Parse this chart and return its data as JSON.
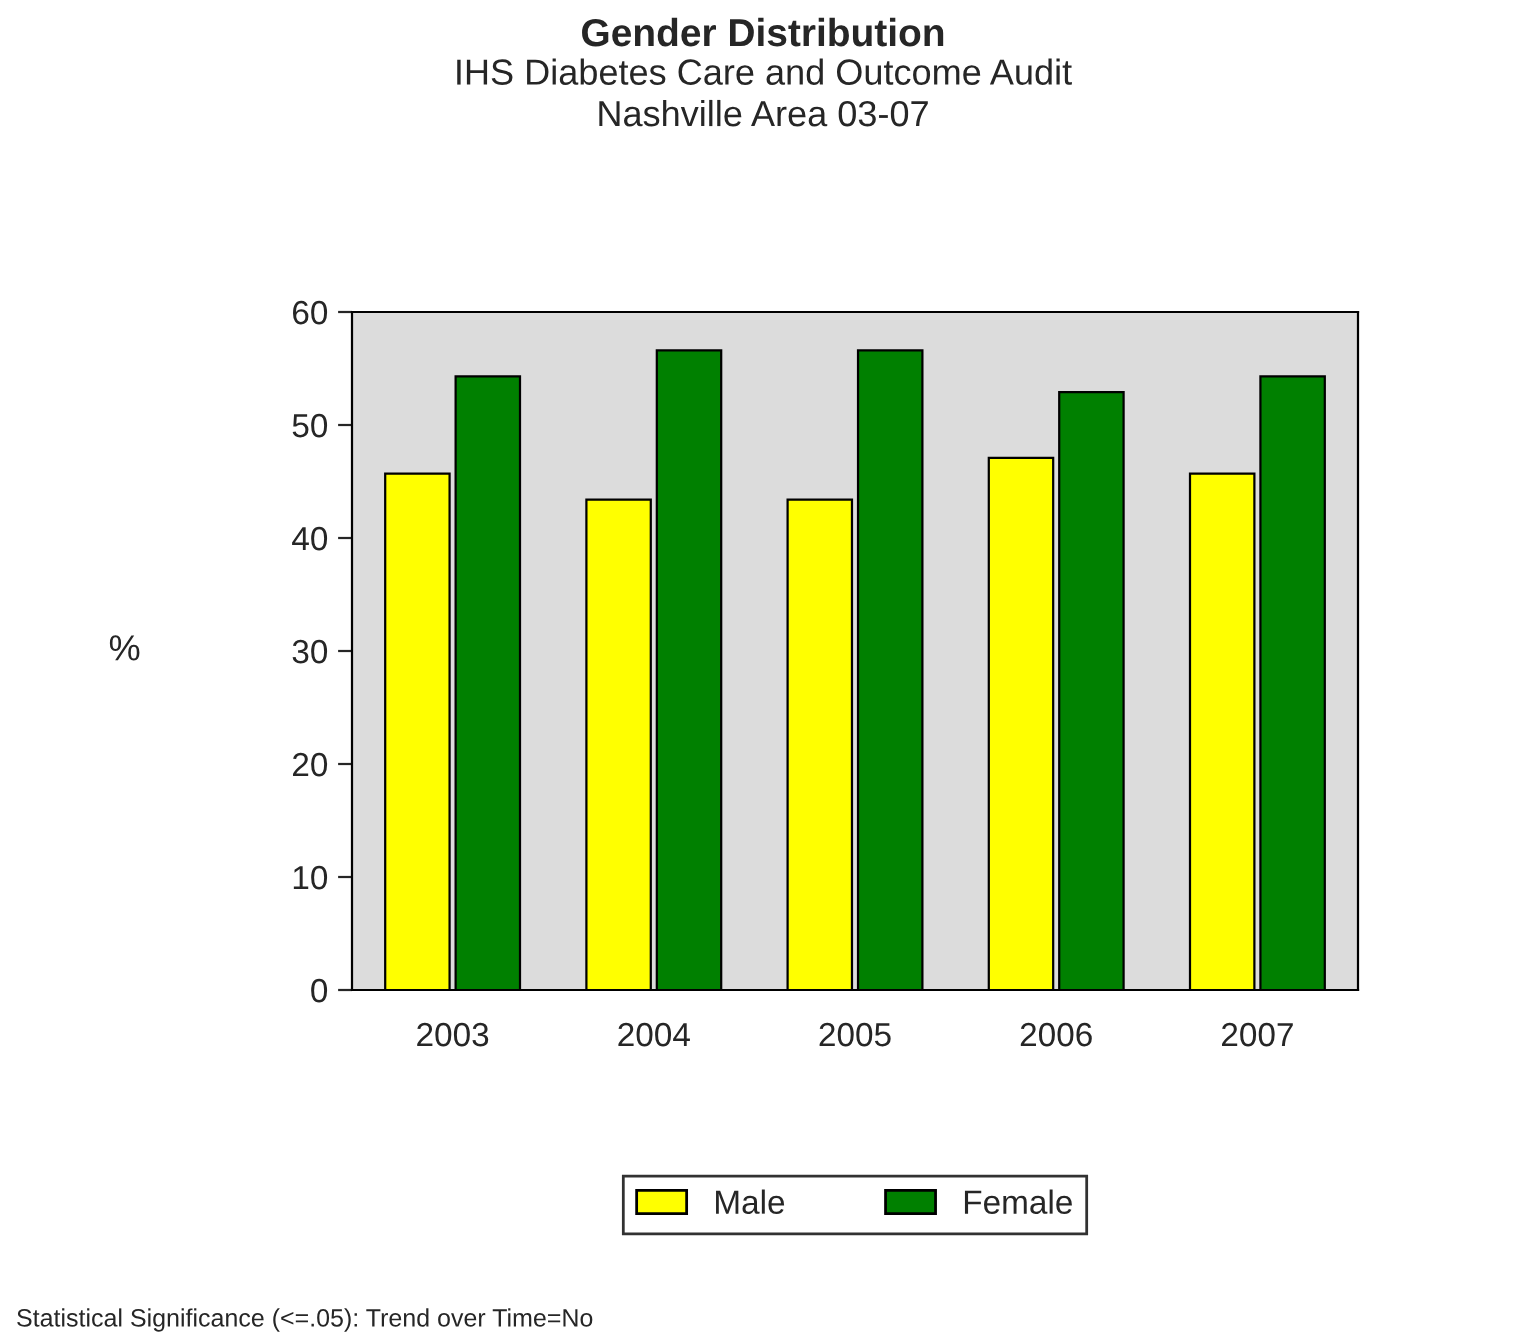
{
  "chart_data": {
    "type": "bar",
    "title": "Gender Distribution",
    "subtitle": "IHS Diabetes Care and Outcome Audit\nNashville Area 03-07",
    "ylabel": "%",
    "categories": [
      "2003",
      "2004",
      "2005",
      "2006",
      "2007"
    ],
    "series": [
      {
        "name": "Male",
        "color": "#ffff00",
        "values": [
          45.7,
          43.4,
          43.4,
          47.1,
          45.7
        ]
      },
      {
        "name": "Female",
        "color": "#008000",
        "values": [
          54.3,
          56.6,
          56.6,
          52.9,
          54.3
        ]
      }
    ],
    "ylim": [
      0,
      60
    ],
    "yticks": [
      0,
      10,
      20,
      30,
      40,
      50,
      60
    ],
    "grid": false,
    "legend": "bottom",
    "annotations": [
      "Statistical Significance (<=.05): Trend over Time=No"
    ]
  }
}
